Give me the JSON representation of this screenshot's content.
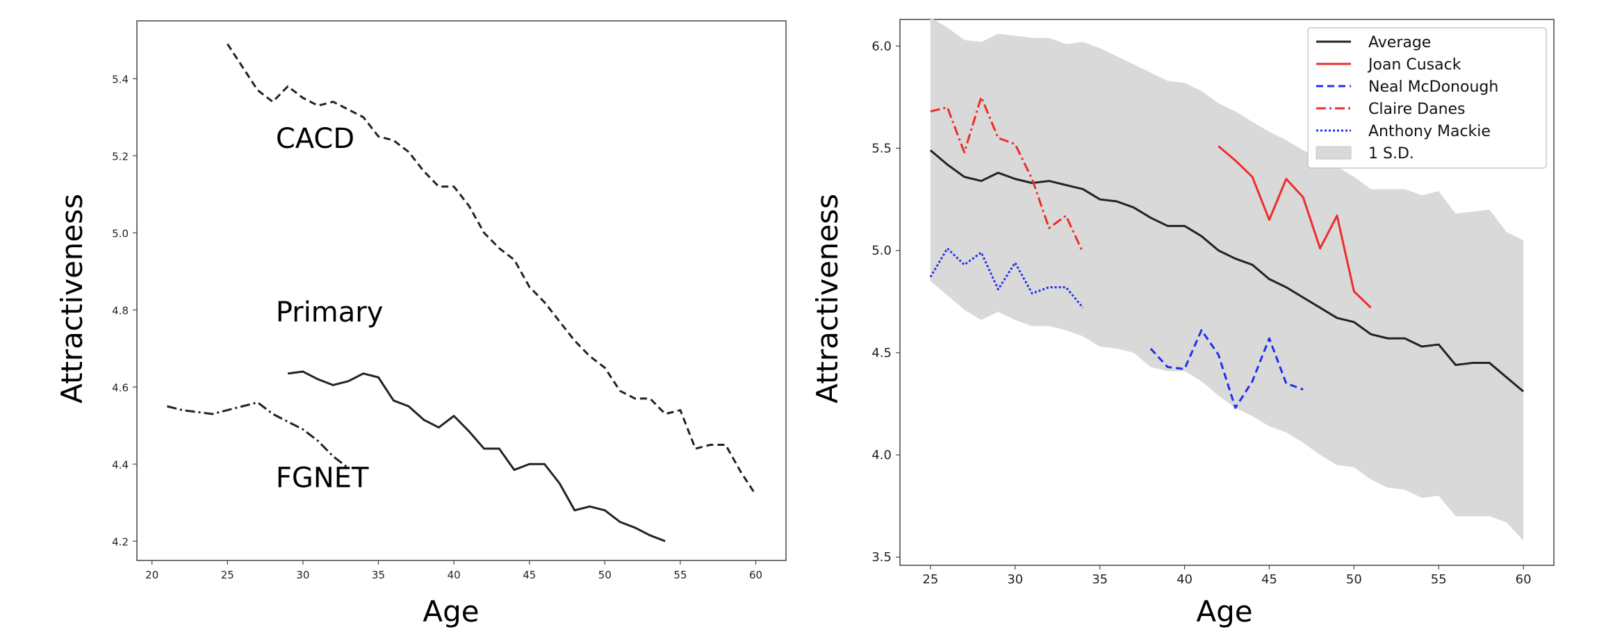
{
  "chart_data": [
    {
      "type": "line",
      "title": "",
      "xlabel": "Age",
      "ylabel": "Attractiveness",
      "xlim": [
        19,
        62
      ],
      "ylim": [
        4.15,
        5.55
      ],
      "xticks": [
        20,
        25,
        30,
        35,
        40,
        45,
        50,
        55,
        60
      ],
      "yticks": [
        4.2,
        4.4,
        4.6,
        4.8,
        5.0,
        5.2,
        5.4
      ],
      "grid": false,
      "annotations": [
        {
          "text": "CACD",
          "x": 28.2,
          "y": 5.22
        },
        {
          "text": "Primary",
          "x": 28.2,
          "y": 4.77
        },
        {
          "text": "FGNET",
          "x": 28.2,
          "y": 4.34
        }
      ],
      "series": [
        {
          "name": "CACD",
          "style": "dashed",
          "color": "#222222",
          "x": [
            25,
            26,
            27,
            28,
            29,
            30,
            31,
            32,
            33,
            34,
            35,
            36,
            37,
            38,
            39,
            40,
            41,
            42,
            43,
            44,
            45,
            46,
            47,
            48,
            49,
            50,
            51,
            52,
            53,
            54,
            55,
            56,
            57,
            58,
            59,
            60
          ],
          "y": [
            5.49,
            5.43,
            5.37,
            5.34,
            5.38,
            5.35,
            5.33,
            5.34,
            5.32,
            5.3,
            5.25,
            5.24,
            5.21,
            5.16,
            5.12,
            5.12,
            5.07,
            5.0,
            4.96,
            4.93,
            4.86,
            4.82,
            4.77,
            4.72,
            4.68,
            4.65,
            4.59,
            4.57,
            4.57,
            4.53,
            4.54,
            4.44,
            4.45,
            4.45,
            4.38,
            4.32
          ]
        },
        {
          "name": "Primary",
          "style": "solid",
          "color": "#222222",
          "x": [
            29,
            30,
            31,
            32,
            33,
            34,
            35,
            36,
            37,
            38,
            39,
            40,
            41,
            42,
            43,
            44,
            45,
            46,
            47,
            48,
            49,
            50,
            51,
            52,
            53,
            54
          ],
          "y": [
            4.635,
            4.64,
            4.62,
            4.605,
            4.615,
            4.635,
            4.625,
            4.565,
            4.55,
            4.515,
            4.495,
            4.525,
            4.485,
            4.44,
            4.44,
            4.385,
            4.4,
            4.4,
            4.35,
            4.28,
            4.29,
            4.28,
            4.25,
            4.235,
            4.215,
            4.2
          ]
        },
        {
          "name": "FGNET",
          "style": "dashdot",
          "color": "#222222",
          "x": [
            21,
            22,
            23,
            24,
            25,
            26,
            27,
            28,
            29,
            30,
            31,
            32,
            33
          ],
          "y": [
            4.55,
            4.54,
            4.535,
            4.53,
            4.54,
            4.55,
            4.56,
            4.53,
            4.51,
            4.49,
            4.46,
            4.42,
            4.39
          ]
        }
      ]
    },
    {
      "type": "line",
      "title": "",
      "xlabel": "Age",
      "ylabel": "Attractiveness",
      "xlim": [
        23.2,
        61.8
      ],
      "ylim": [
        3.46,
        6.13
      ],
      "xticks": [
        25,
        30,
        35,
        40,
        45,
        50,
        55,
        60
      ],
      "yticks": [
        3.5,
        4.0,
        4.5,
        5.0,
        5.5,
        6.0
      ],
      "grid": false,
      "legend": {
        "position": "top-right",
        "entries": [
          "Average",
          "Joan Cusack",
          "Neal McDonough",
          "Claire Danes",
          "Anthony Mackie",
          "1 S.D."
        ]
      },
      "band": {
        "name": "1 S.D.",
        "color": "#d9d9d9",
        "x": [
          25,
          26,
          27,
          28,
          29,
          30,
          31,
          32,
          33,
          34,
          35,
          36,
          37,
          38,
          39,
          40,
          41,
          42,
          43,
          44,
          45,
          46,
          47,
          48,
          49,
          50,
          51,
          52,
          53,
          54,
          55,
          56,
          57,
          58,
          59,
          60
        ],
        "upper": [
          6.14,
          6.09,
          6.03,
          6.02,
          6.06,
          6.05,
          6.04,
          6.04,
          6.01,
          6.02,
          5.99,
          5.95,
          5.91,
          5.87,
          5.83,
          5.82,
          5.78,
          5.72,
          5.68,
          5.63,
          5.58,
          5.54,
          5.49,
          5.45,
          5.41,
          5.36,
          5.3,
          5.3,
          5.3,
          5.27,
          5.29,
          5.18,
          5.19,
          5.2,
          5.09,
          5.05
        ],
        "lower": [
          4.85,
          4.78,
          4.71,
          4.66,
          4.7,
          4.66,
          4.63,
          4.63,
          4.61,
          4.58,
          4.53,
          4.52,
          4.5,
          4.43,
          4.41,
          4.41,
          4.36,
          4.29,
          4.23,
          4.19,
          4.14,
          4.11,
          4.06,
          4.0,
          3.95,
          3.94,
          3.88,
          3.84,
          3.83,
          3.79,
          3.8,
          3.7,
          3.7,
          3.7,
          3.67,
          3.58
        ]
      },
      "series": [
        {
          "name": "Average",
          "style": "solid",
          "color": "#222222",
          "x": [
            25,
            26,
            27,
            28,
            29,
            30,
            31,
            32,
            33,
            34,
            35,
            36,
            37,
            38,
            39,
            40,
            41,
            42,
            43,
            44,
            45,
            46,
            47,
            48,
            49,
            50,
            51,
            52,
            53,
            54,
            55,
            56,
            57,
            58,
            59,
            60
          ],
          "y": [
            5.49,
            5.42,
            5.36,
            5.34,
            5.38,
            5.35,
            5.33,
            5.34,
            5.32,
            5.3,
            5.25,
            5.24,
            5.21,
            5.16,
            5.12,
            5.12,
            5.07,
            5.0,
            4.96,
            4.93,
            4.86,
            4.82,
            4.77,
            4.72,
            4.67,
            4.65,
            4.59,
            4.57,
            4.57,
            4.53,
            4.54,
            4.44,
            4.45,
            4.45,
            4.38,
            4.31
          ]
        },
        {
          "name": "Joan Cusack",
          "style": "solid",
          "color": "#ee2b2b",
          "x": [
            42,
            43,
            44,
            45,
            46,
            47,
            48,
            49,
            50,
            51
          ],
          "y": [
            5.51,
            5.44,
            5.36,
            5.15,
            5.35,
            5.26,
            5.01,
            5.17,
            4.8,
            4.72
          ]
        },
        {
          "name": "Neal McDonough",
          "style": "dashed",
          "color": "#1f2ef0",
          "x": [
            38,
            39,
            40,
            41,
            42,
            43,
            44,
            45,
            46,
            47
          ],
          "y": [
            4.52,
            4.43,
            4.42,
            4.61,
            4.49,
            4.23,
            4.36,
            4.57,
            4.35,
            4.32
          ]
        },
        {
          "name": "Claire Danes",
          "style": "dashdot",
          "color": "#ee2b2b",
          "x": [
            25,
            26,
            27,
            28,
            29,
            30,
            31,
            32,
            33,
            34
          ],
          "y": [
            5.68,
            5.7,
            5.48,
            5.75,
            5.55,
            5.52,
            5.35,
            5.11,
            5.17,
            4.99
          ]
        },
        {
          "name": "Anthony Mackie",
          "style": "dotted",
          "color": "#1f2ef0",
          "x": [
            25,
            26,
            27,
            28,
            29,
            30,
            31,
            32,
            33,
            34
          ],
          "y": [
            4.87,
            5.01,
            4.93,
            4.99,
            4.81,
            4.94,
            4.79,
            4.82,
            4.82,
            4.72
          ]
        }
      ]
    }
  ]
}
